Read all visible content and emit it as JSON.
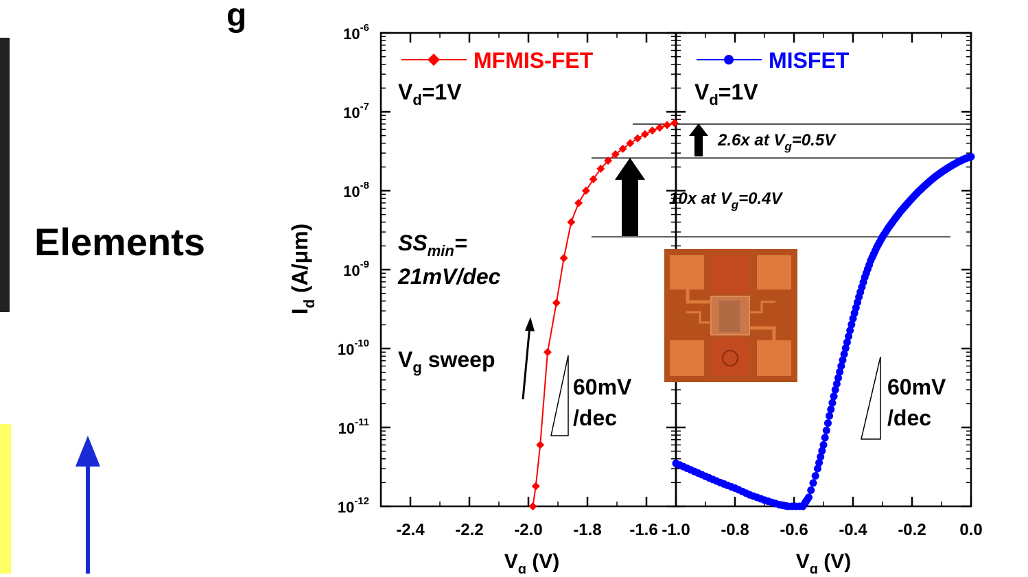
{
  "background": {
    "title_fragment": "g",
    "side_label": "Elements"
  },
  "chart_data": {
    "type": "scatter",
    "y_axis": {
      "label_main": "I",
      "label_sub": "d",
      "label_rest": " (A/μm)",
      "scale": "log",
      "ylim": [
        1e-12,
        1e-06
      ],
      "tick_mantissa": "10",
      "tick_exponents": [
        "-12",
        "-11",
        "-10",
        "-9",
        "-8",
        "-7",
        "-6"
      ]
    },
    "panels": [
      {
        "name": "MFMIS-FET",
        "color": "#ff0000",
        "marker": "diamond",
        "xlim": [
          -2.5,
          -1.5
        ],
        "xticks": [
          "-2.4",
          "-2.2",
          "-2.0",
          "-1.8",
          "-1.6"
        ],
        "xlabel_main": "V",
        "xlabel_sub": "g",
        "xlabel_rest": " (V)",
        "legend_label": "MFMIS-FET",
        "vd_main": "V",
        "vd_sub": "d",
        "vd_rest": "=1V",
        "points": [
          {
            "x": -1.985,
            "y": 1e-12
          },
          {
            "x": -1.975,
            "y": 1.8e-12
          },
          {
            "x": -1.96,
            "y": 6e-12
          },
          {
            "x": -1.935,
            "y": 9e-11
          },
          {
            "x": -1.905,
            "y": 3.8e-10
          },
          {
            "x": -1.88,
            "y": 1.4e-09
          },
          {
            "x": -1.855,
            "y": 4e-09
          },
          {
            "x": -1.83,
            "y": 7e-09
          },
          {
            "x": -1.805,
            "y": 1e-08
          },
          {
            "x": -1.78,
            "y": 1.4e-08
          },
          {
            "x": -1.755,
            "y": 1.9e-08
          },
          {
            "x": -1.73,
            "y": 2.4e-08
          },
          {
            "x": -1.705,
            "y": 2.9e-08
          },
          {
            "x": -1.68,
            "y": 3.4e-08
          },
          {
            "x": -1.655,
            "y": 4e-08
          },
          {
            "x": -1.63,
            "y": 4.6e-08
          },
          {
            "x": -1.605,
            "y": 5.2e-08
          },
          {
            "x": -1.58,
            "y": 5.8e-08
          },
          {
            "x": -1.555,
            "y": 6.3e-08
          },
          {
            "x": -1.53,
            "y": 6.8e-08
          },
          {
            "x": -1.505,
            "y": 7.2e-08
          }
        ]
      },
      {
        "name": "MISFET",
        "color": "#0000ff",
        "marker": "circle",
        "xlim": [
          -1.0,
          0.0
        ],
        "xticks": [
          "-1.0",
          "-0.8",
          "-0.6",
          "-0.4",
          "-0.2",
          "0.0"
        ],
        "xlabel_main": "V",
        "xlabel_sub": "g",
        "xlabel_rest": " (V)",
        "legend_label": "MISFET",
        "vd_main": "V",
        "vd_sub": "d",
        "vd_rest": "=1V",
        "points": [
          {
            "x": -1.0,
            "y": 3.5e-12
          },
          {
            "x": -0.95,
            "y": 2.9e-12
          },
          {
            "x": -0.9,
            "y": 2.4e-12
          },
          {
            "x": -0.85,
            "y": 2e-12
          },
          {
            "x": -0.8,
            "y": 1.7e-12
          },
          {
            "x": -0.75,
            "y": 1.4e-12
          },
          {
            "x": -0.7,
            "y": 1.2e-12
          },
          {
            "x": -0.65,
            "y": 1.05e-12
          },
          {
            "x": -0.62,
            "y": 1e-12
          },
          {
            "x": -0.57,
            "y": 1e-12
          },
          {
            "x": -0.55,
            "y": 1.3e-12
          },
          {
            "x": -0.52,
            "y": 3e-12
          },
          {
            "x": -0.5,
            "y": 6e-12
          },
          {
            "x": -0.48,
            "y": 1.4e-11
          },
          {
            "x": -0.46,
            "y": 3e-11
          },
          {
            "x": -0.44,
            "y": 6e-11
          },
          {
            "x": -0.42,
            "y": 1.2e-10
          },
          {
            "x": -0.4,
            "y": 2.4e-10
          },
          {
            "x": -0.38,
            "y": 4.5e-10
          },
          {
            "x": -0.36,
            "y": 8e-10
          },
          {
            "x": -0.34,
            "y": 1.3e-09
          },
          {
            "x": -0.32,
            "y": 1.9e-09
          },
          {
            "x": -0.3,
            "y": 2.6e-09
          },
          {
            "x": -0.28,
            "y": 3.4e-09
          },
          {
            "x": -0.26,
            "y": 4.3e-09
          },
          {
            "x": -0.24,
            "y": 5.4e-09
          },
          {
            "x": -0.22,
            "y": 6.6e-09
          },
          {
            "x": -0.2,
            "y": 8e-09
          },
          {
            "x": -0.18,
            "y": 9.6e-09
          },
          {
            "x": -0.16,
            "y": 1.13e-08
          },
          {
            "x": -0.14,
            "y": 1.32e-08
          },
          {
            "x": -0.12,
            "y": 1.52e-08
          },
          {
            "x": -0.1,
            "y": 1.72e-08
          },
          {
            "x": -0.08,
            "y": 1.93e-08
          },
          {
            "x": -0.06,
            "y": 2.14e-08
          },
          {
            "x": -0.04,
            "y": 2.35e-08
          },
          {
            "x": -0.02,
            "y": 2.55e-08
          },
          {
            "x": 0.0,
            "y": 2.7e-08
          }
        ]
      }
    ],
    "annotations": {
      "ss_main": "SS",
      "ss_sub": "min",
      "ss_rest": "=",
      "ss_value": "21mV/dec",
      "sweep_main": "V",
      "sweep_sub": "g",
      "sweep_rest": " sweep",
      "slope_line1": "60mV",
      "slope_line2": "/dec",
      "ratio_small_pre": "2.6x at V",
      "ratio_small_sub": "g",
      "ratio_small_post": "=0.5V",
      "ratio_large_pre": "10x at V",
      "ratio_large_sub": "g",
      "ratio_large_post": "=0.4V",
      "reference_levels": [
        7e-08,
        2.6e-08,
        2.6e-09
      ]
    }
  },
  "colors": {
    "accent_red": "#ff0000",
    "accent_blue": "#0000ff",
    "chip_background": "#b5501c",
    "chip_pad": "#dd7a3c"
  }
}
